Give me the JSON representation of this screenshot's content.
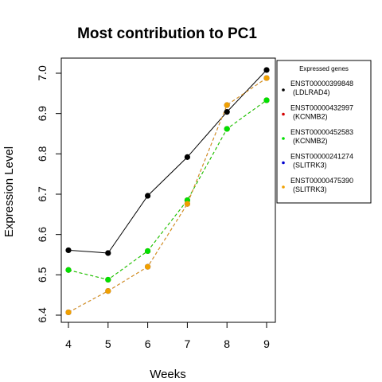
{
  "chart_data": {
    "type": "line",
    "title": "Most contribution to PC1",
    "xlabel": "Weeks",
    "ylabel": "Expression Level",
    "x": [
      4,
      5,
      6,
      7,
      8,
      9
    ],
    "x_ticks": [
      "4",
      "5",
      "6",
      "7",
      "8",
      "9"
    ],
    "y_ticks": [
      "6.4",
      "6.5",
      "6.6",
      "6.7",
      "6.8",
      "6.9",
      "7.0"
    ],
    "ylim": [
      6.4,
      7.0
    ],
    "grid": false,
    "legend_placement": "right",
    "legend_title": "Expressed genes",
    "series": [
      {
        "name": "ENST00000399848 (LDLRAD4)",
        "name_line1": "ENST00000399848",
        "name_line2": "(LDLRAD4)",
        "color": "#000000",
        "dash": "",
        "values": [
          6.561,
          6.554,
          6.696,
          6.792,
          6.904,
          7.008
        ]
      },
      {
        "name": "ENST00000432997 (KCNMB2)",
        "name_line1": "ENST00000432997",
        "name_line2": "(KCNMB2)",
        "color": "#d40000",
        "dash": "4,3",
        "values": [
          6.512,
          6.488,
          6.559,
          6.685,
          6.862,
          6.933
        ]
      },
      {
        "name": "ENST00000452583 (KCNMB2)",
        "name_line1": "ENST00000452583",
        "name_line2": "(KCNMB2)",
        "color": "#00e000",
        "dash": "4,3",
        "values": [
          6.512,
          6.488,
          6.559,
          6.685,
          6.862,
          6.933
        ]
      },
      {
        "name": "ENST00000241274 (SLITRK3)",
        "name_line1": "ENST00000241274",
        "name_line2": "(SLITRK3)",
        "color": "#0000d0",
        "dash": "4,3",
        "values": [
          6.407,
          6.46,
          6.52,
          6.676,
          6.921,
          6.988
        ]
      },
      {
        "name": "ENST00000475390 (SLITRK3)",
        "name_line1": "ENST00000475390",
        "name_line2": "(SLITRK3)",
        "color": "#f0a000",
        "dash": "4,3",
        "values": [
          6.407,
          6.46,
          6.52,
          6.676,
          6.921,
          6.988
        ]
      }
    ]
  }
}
